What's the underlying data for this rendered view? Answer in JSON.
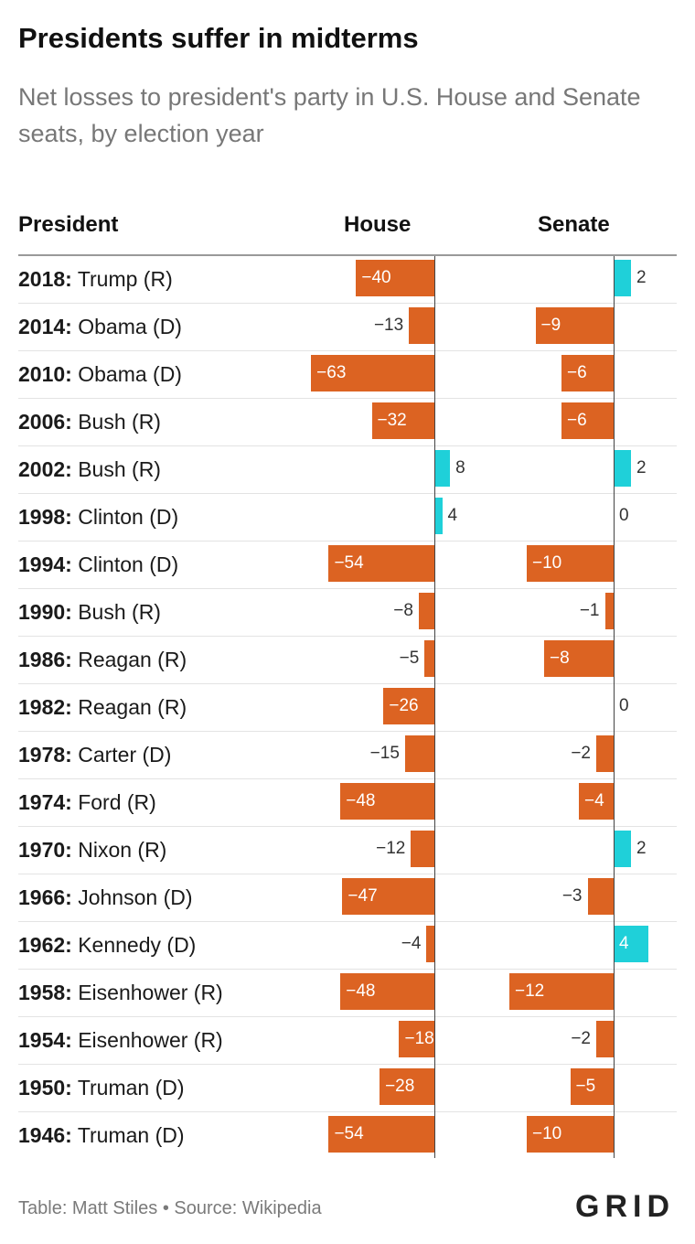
{
  "header": {
    "title": "Presidents suffer in midterms",
    "subtitle": "Net losses to president's party in U.S. House and Senate seats, by election year"
  },
  "columns": {
    "president": "President",
    "house": "House",
    "senate": "Senate"
  },
  "footer": {
    "source": "Table: Matt Stiles • Source: Wikipedia",
    "logo": "GRID"
  },
  "colors": {
    "negative": "#dc6322",
    "positive": "#1fd0d9"
  },
  "chart_data": {
    "type": "table",
    "title": "Presidents suffer in midterms",
    "subtitle": "Net losses to president's party in U.S. House and Senate seats, by election year",
    "columns": [
      "President",
      "House",
      "Senate"
    ],
    "rows": [
      {
        "year": "2018:",
        "president": "Trump (R)",
        "house": -40,
        "senate": 2
      },
      {
        "year": "2014:",
        "president": "Obama (D)",
        "house": -13,
        "senate": -9
      },
      {
        "year": "2010:",
        "president": "Obama (D)",
        "house": -63,
        "senate": -6
      },
      {
        "year": "2006:",
        "president": "Bush (R)",
        "house": -32,
        "senate": -6
      },
      {
        "year": "2002:",
        "president": "Bush (R)",
        "house": 8,
        "senate": 2
      },
      {
        "year": "1998:",
        "president": "Clinton (D)",
        "house": 4,
        "senate": 0
      },
      {
        "year": "1994:",
        "president": "Clinton (D)",
        "house": -54,
        "senate": -10
      },
      {
        "year": "1990:",
        "president": "Bush (R)",
        "house": -8,
        "senate": -1
      },
      {
        "year": "1986:",
        "president": "Reagan (R)",
        "house": -5,
        "senate": -8
      },
      {
        "year": "1982:",
        "president": "Reagan (R)",
        "house": -26,
        "senate": 0
      },
      {
        "year": "1978:",
        "president": "Carter (D)",
        "house": -15,
        "senate": -2
      },
      {
        "year": "1974:",
        "president": "Ford (R)",
        "house": -48,
        "senate": -4
      },
      {
        "year": "1970:",
        "president": "Nixon (R)",
        "house": -12,
        "senate": 2
      },
      {
        "year": "1966:",
        "president": "Johnson (D)",
        "house": -47,
        "senate": -3
      },
      {
        "year": "1962:",
        "president": "Kennedy (D)",
        "house": -4,
        "senate": 4
      },
      {
        "year": "1958:",
        "president": "Eisenhower (R)",
        "house": -48,
        "senate": -12
      },
      {
        "year": "1954:",
        "president": "Eisenhower (R)",
        "house": -18,
        "senate": -2
      },
      {
        "year": "1950:",
        "president": "Truman (D)",
        "house": -28,
        "senate": -5
      },
      {
        "year": "1946:",
        "president": "Truman (D)",
        "house": -54,
        "senate": -10
      }
    ]
  }
}
